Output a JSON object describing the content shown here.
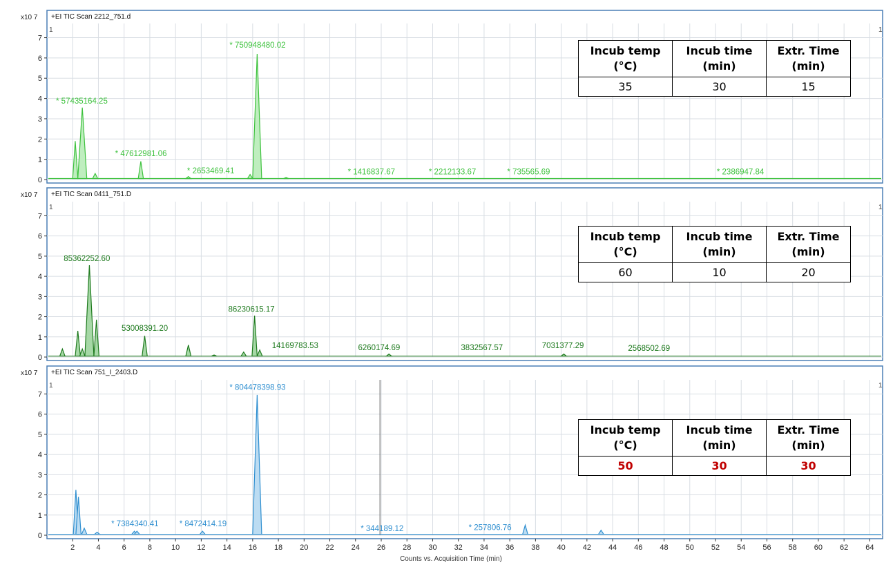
{
  "chart_data": {
    "type": "line",
    "xlabel": "Counts vs. Acquisition Time (min)",
    "xlim": [
      0,
      65
    ],
    "x_ticks": [
      "2",
      "4",
      "6",
      "8",
      "10",
      "12",
      "14",
      "16",
      "18",
      "20",
      "22",
      "24",
      "26",
      "28",
      "30",
      "32",
      "34",
      "36",
      "38",
      "40",
      "42",
      "44",
      "46",
      "48",
      "50",
      "52",
      "54",
      "56",
      "58",
      "60",
      "62",
      "64"
    ],
    "y_exponent": "x10 7",
    "y_ticks": [
      "0",
      "1",
      "2",
      "3",
      "4",
      "5",
      "6",
      "7"
    ],
    "ylim": [
      0,
      7.7
    ],
    "grid": true,
    "panels": [
      {
        "title": "+EI TIC Scan 2212_751.d",
        "color": "#3ec23e",
        "fill": "#bfeebf",
        "corner_left": "1",
        "corner_right": "1",
        "table": {
          "headers": [
            "Incub temp (°C)",
            "Incub time (min)",
            "Extr. Time (min)"
          ],
          "values": [
            "35",
            "30",
            "15"
          ],
          "highlight": false
        },
        "peaks": [
          {
            "x": 2.2,
            "y": 1.9
          },
          {
            "x": 2.75,
            "y": 3.55
          },
          {
            "x": 3.75,
            "y": 0.3
          },
          {
            "x": 7.3,
            "y": 0.9
          },
          {
            "x": 11.0,
            "y": 0.15
          },
          {
            "x": 16.35,
            "y": 6.2
          },
          {
            "x": 15.8,
            "y": 0.25
          },
          {
            "x": 18.6,
            "y": 0.1
          }
        ],
        "annotations": [
          {
            "text": "* 57435164.25",
            "x": 0.7,
            "y": 3.75
          },
          {
            "text": "* 750948480.02",
            "x": 14.2,
            "y": 6.5
          },
          {
            "text": "* 47612981.06",
            "x": 5.3,
            "y": 1.15
          },
          {
            "text": "* 2653469.41",
            "x": 10.9,
            "y": 0.3
          },
          {
            "text": "* 1416837.67",
            "x": 23.4,
            "y": 0.25
          },
          {
            "text": "* 2212133.67",
            "x": 29.7,
            "y": 0.25
          },
          {
            "text": "* 735565.69",
            "x": 35.8,
            "y": 0.25
          },
          {
            "text": "* 2386947.84",
            "x": 52.1,
            "y": 0.25
          }
        ]
      },
      {
        "title": "+EI TIC Scan 0411_751.D",
        "color": "#1e7a1e",
        "fill": "#a6d8a6",
        "corner_left": "1",
        "corner_right": "1",
        "table": {
          "headers": [
            "Incub temp (°C)",
            "Incub time (min)",
            "Extr. Time (min)"
          ],
          "values": [
            "60",
            "10",
            "20"
          ],
          "highlight": false
        },
        "peaks": [
          {
            "x": 1.2,
            "y": 0.4
          },
          {
            "x": 2.4,
            "y": 1.3
          },
          {
            "x": 2.75,
            "y": 0.4
          },
          {
            "x": 3.3,
            "y": 4.55
          },
          {
            "x": 3.85,
            "y": 1.85
          },
          {
            "x": 7.6,
            "y": 1.05
          },
          {
            "x": 11.0,
            "y": 0.6
          },
          {
            "x": 13.0,
            "y": 0.1
          },
          {
            "x": 15.3,
            "y": 0.25
          },
          {
            "x": 16.15,
            "y": 2.05
          },
          {
            "x": 16.55,
            "y": 0.35
          },
          {
            "x": 26.6,
            "y": 0.15
          },
          {
            "x": 40.2,
            "y": 0.15
          }
        ],
        "annotations": [
          {
            "text": "85362252.60",
            "x": 1.3,
            "y": 4.75
          },
          {
            "text": "53008391.20",
            "x": 5.8,
            "y": 1.3
          },
          {
            "text": "86230615.17",
            "x": 14.1,
            "y": 2.25
          },
          {
            "text": "14169783.53",
            "x": 17.5,
            "y": 0.45
          },
          {
            "text": "6260174.69",
            "x": 24.2,
            "y": 0.35
          },
          {
            "text": "3832567.57",
            "x": 32.2,
            "y": 0.35
          },
          {
            "text": "7031377.29",
            "x": 38.5,
            "y": 0.45
          },
          {
            "text": "2568502.69",
            "x": 45.2,
            "y": 0.3
          }
        ]
      },
      {
        "title": "+EI TIC Scan 751_I_2403.D",
        "color": "#2f8fd0",
        "fill": "#bcdcf2",
        "corner_left": "1",
        "corner_right": "1",
        "table": {
          "headers": [
            "Incub temp (°C)",
            "Incub time (min)",
            "Extr. Time (min)"
          ],
          "values": [
            "50",
            "30",
            "30"
          ],
          "highlight": true
        },
        "peaks": [
          {
            "x": 2.25,
            "y": 2.25
          },
          {
            "x": 2.45,
            "y": 1.9
          },
          {
            "x": 2.9,
            "y": 0.35
          },
          {
            "x": 3.9,
            "y": 0.15
          },
          {
            "x": 6.8,
            "y": 0.2
          },
          {
            "x": 7.0,
            "y": 0.2
          },
          {
            "x": 12.1,
            "y": 0.2
          },
          {
            "x": 16.35,
            "y": 6.95
          },
          {
            "x": 37.2,
            "y": 0.5
          },
          {
            "x": 43.1,
            "y": 0.25
          }
        ],
        "annotations": [
          {
            "text": "* 804478398.93",
            "x": 14.2,
            "y": 7.2
          },
          {
            "text": "* 7384340.41",
            "x": 5.0,
            "y": 0.45
          },
          {
            "text": "* 8472414.19",
            "x": 10.3,
            "y": 0.45
          },
          {
            "text": "* 344189.12",
            "x": 24.4,
            "y": 0.2
          },
          {
            "text": "* 257806.76",
            "x": 32.8,
            "y": 0.25
          }
        ],
        "cursor_x": 25.9
      }
    ]
  }
}
